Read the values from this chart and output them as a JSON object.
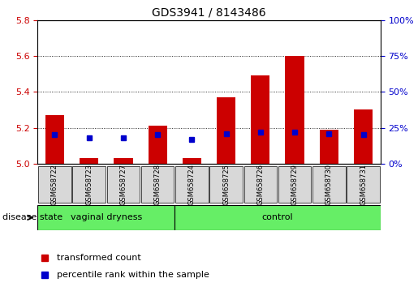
{
  "title": "GDS3941 / 8143486",
  "samples": [
    "GSM658722",
    "GSM658723",
    "GSM658727",
    "GSM658728",
    "GSM658724",
    "GSM658725",
    "GSM658726",
    "GSM658729",
    "GSM658730",
    "GSM658731"
  ],
  "red_values": [
    5.27,
    5.03,
    5.03,
    5.21,
    5.03,
    5.37,
    5.49,
    5.6,
    5.19,
    5.3
  ],
  "blue_values": [
    20,
    18,
    18,
    20,
    17,
    21,
    22,
    22,
    21,
    20
  ],
  "ymin": 5.0,
  "ymax": 5.8,
  "yticks_left": [
    5.0,
    5.2,
    5.4,
    5.6,
    5.8
  ],
  "yticks_right": [
    0,
    25,
    50,
    75,
    100
  ],
  "bar_color": "#cc0000",
  "blue_color": "#0000cc",
  "group1_label": "vaginal dryness",
  "group2_label": "control",
  "group1_count": 4,
  "group2_count": 6,
  "group_bg_color": "#66ee66",
  "tick_label_color_left": "#cc0000",
  "tick_label_color_right": "#0000cc",
  "legend_red_label": "transformed count",
  "legend_blue_label": "percentile rank within the sample",
  "bar_width": 0.55,
  "disease_state_label": "disease state",
  "cell_bg_color": "#d8d8d8",
  "title_fontsize": 10,
  "label_fontsize": 8,
  "tick_fontsize": 8,
  "sample_fontsize": 6
}
